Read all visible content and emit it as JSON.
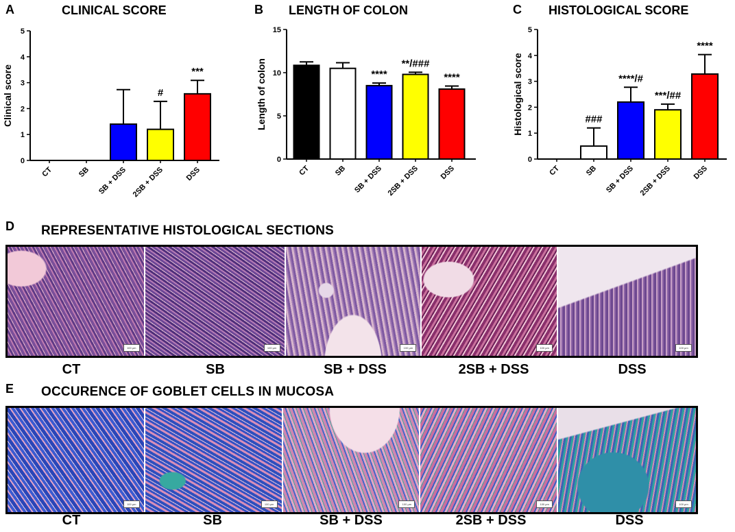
{
  "panels": {
    "A": {
      "letter": "A"
    },
    "B": {
      "letter": "B"
    },
    "C": {
      "letter": "C"
    },
    "D": {
      "letter": "D",
      "title": "REPRESENTATIVE HISTOLOGICAL SECTIONS"
    },
    "E": {
      "letter": "E",
      "title": "OCCURENCE OF GOBLET CELLS IN MUCOSA"
    }
  },
  "chart_data": [
    {
      "type": "bar",
      "title": "CLINICAL SCORE",
      "xlabel": "",
      "ylabel": "Clinical score",
      "ylim": [
        0,
        5
      ],
      "yticks": [
        "0",
        "1",
        "2",
        "3",
        "4",
        "5"
      ],
      "categories": [
        "CT",
        "SB",
        "SB + DSS",
        "2SB + DSS",
        "DSS"
      ],
      "values": [
        0,
        0,
        1.4,
        1.2,
        2.57
      ],
      "errors": [
        0,
        0,
        1.33,
        1.08,
        0.52
      ],
      "annotations": [
        "",
        "",
        "",
        "#",
        "***"
      ],
      "colors": [
        "#000000",
        "#ffffff",
        "#0000ff",
        "#ffff00",
        "#ff0000"
      ]
    },
    {
      "type": "bar",
      "title": "LENGTH OF COLON",
      "xlabel": "",
      "ylabel": "Length of colon",
      "ylim": [
        0,
        15
      ],
      "yticks": [
        "0",
        "5",
        "10",
        "15"
      ],
      "categories": [
        "CT",
        "SB",
        "SB + DSS",
        "2SB + DSS",
        "DSS"
      ],
      "values": [
        10.85,
        10.5,
        8.5,
        9.8,
        8.1
      ],
      "errors": [
        0.4,
        0.65,
        0.3,
        0.25,
        0.35
      ],
      "annotations": [
        "",
        "",
        "****",
        "**/###",
        "****"
      ],
      "colors": [
        "#000000",
        "#ffffff",
        "#0000ff",
        "#ffff00",
        "#ff0000"
      ]
    },
    {
      "type": "bar",
      "title": "HISTOLOGICAL SCORE",
      "xlabel": "",
      "ylabel": "Histological score",
      "ylim": [
        0,
        5
      ],
      "yticks": [
        "0",
        "1",
        "2",
        "3",
        "4",
        "5"
      ],
      "categories": [
        "CT",
        "SB",
        "SB + DSS",
        "2SB + DSS",
        "DSS"
      ],
      "values": [
        0,
        0.5,
        2.2,
        1.9,
        3.28
      ],
      "errors": [
        0,
        0.7,
        0.57,
        0.22,
        0.75
      ],
      "annotations": [
        "",
        "###",
        "****/#",
        "***/##",
        "****"
      ],
      "colors": [
        "#000000",
        "#ffffff",
        "#0000ff",
        "#ffff00",
        "#ff0000"
      ]
    }
  ],
  "histology": {
    "captions": [
      "CT",
      "SB",
      "SB + DSS",
      "2SB + DSS",
      "DSS"
    ],
    "scale_label": "100 µm"
  },
  "goblet": {
    "captions": [
      "CT",
      "SB",
      "SB + DSS",
      "2SB + DSS",
      "DSS"
    ],
    "scale_label": "100 µm"
  }
}
